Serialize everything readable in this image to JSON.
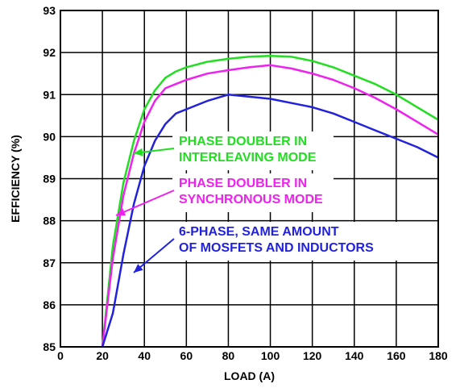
{
  "chart_data": {
    "type": "line",
    "xlabel": "LOAD (A)",
    "ylabel": "EFFICIENCY (%)",
    "xlim": [
      0,
      180
    ],
    "ylim": [
      85,
      93
    ],
    "xticks": [
      "0",
      "20",
      "40",
      "60",
      "80",
      "100",
      "120",
      "140",
      "160",
      "180"
    ],
    "yticks": [
      "85",
      "86",
      "87",
      "88",
      "89",
      "90",
      "91",
      "92",
      "93"
    ],
    "grid": true,
    "legend": "none",
    "series": [
      {
        "color": "#22dd22",
        "x": [
          20,
          25,
          30,
          35,
          40,
          45,
          50,
          55,
          60,
          70,
          80,
          90,
          100,
          110,
          120,
          130,
          140,
          150,
          160,
          170,
          180
        ],
        "y": [
          85.0,
          87.4,
          88.9,
          89.9,
          90.65,
          91.1,
          91.4,
          91.55,
          91.65,
          91.78,
          91.85,
          91.9,
          91.92,
          91.9,
          91.8,
          91.65,
          91.45,
          91.25,
          91.0,
          90.7,
          90.4
        ]
      },
      {
        "color": "#ee22ee",
        "x": [
          20,
          25,
          30,
          35,
          40,
          45,
          50,
          55,
          60,
          70,
          80,
          90,
          100,
          110,
          120,
          130,
          140,
          150,
          160,
          170,
          180
        ],
        "y": [
          85.0,
          87.1,
          88.6,
          89.6,
          90.35,
          90.85,
          91.15,
          91.25,
          91.35,
          91.5,
          91.58,
          91.65,
          91.7,
          91.62,
          91.5,
          91.35,
          91.15,
          90.92,
          90.65,
          90.35,
          90.05
        ]
      },
      {
        "color": "#2222dd",
        "x": [
          20,
          25,
          30,
          35,
          40,
          45,
          50,
          55,
          60,
          70,
          80,
          90,
          100,
          110,
          120,
          130,
          140,
          150,
          160,
          170,
          180
        ],
        "y": [
          85.0,
          85.8,
          87.2,
          88.4,
          89.3,
          89.9,
          90.3,
          90.55,
          90.65,
          90.85,
          91.0,
          90.95,
          90.9,
          90.8,
          90.7,
          90.55,
          90.35,
          90.15,
          89.95,
          89.75,
          89.5
        ]
      }
    ],
    "annotations": [
      {
        "lines": [
          "PHASE DOUBLER IN",
          "INTERLEAVING MODE"
        ],
        "color": "#22dd22"
      },
      {
        "lines": [
          "PHASE DOUBLER IN",
          "SYNCHRONOUS MODE"
        ],
        "color": "#ee22ee"
      },
      {
        "lines": [
          "6-PHASE, SAME AMOUNT",
          "OF MOSFETS AND INDUCTORS"
        ],
        "color": "#2222dd"
      }
    ]
  }
}
